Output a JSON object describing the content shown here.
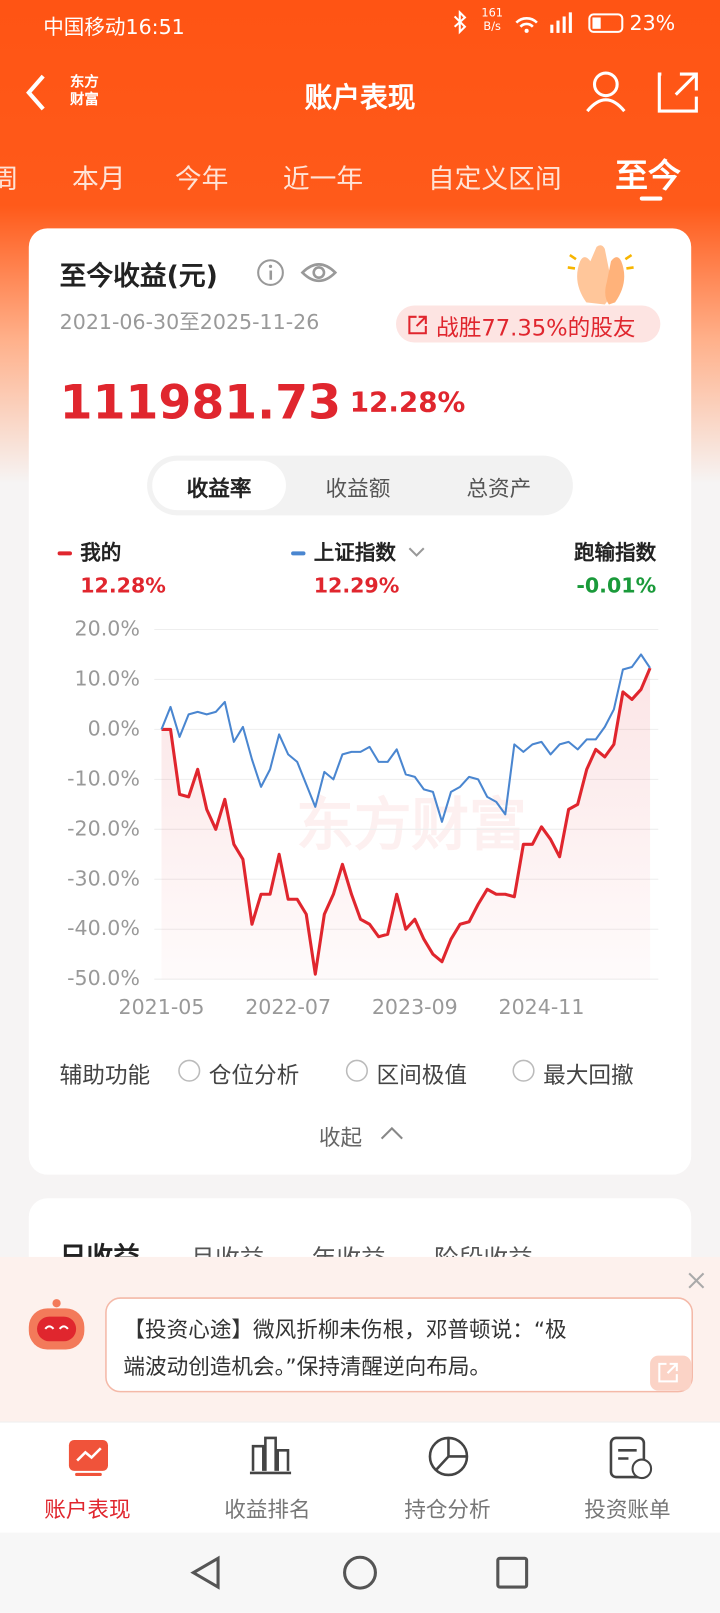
{
  "status_bar": {
    "carrier_time": "中国移动16:51",
    "speed": "161",
    "speed_unit": "B/s",
    "battery": "23%"
  },
  "header": {
    "logo": "东方财富",
    "title": "账户表现"
  },
  "tabs": [
    "周",
    "本月",
    "今年",
    "近一年",
    "自定义区间",
    "至今"
  ],
  "card": {
    "title": "至今收益(元)",
    "date_range": "2021-06-30至2025-11-26",
    "badge": "战胜77.35%的股友",
    "amount": "111981.73",
    "rate": "12.28%",
    "toggle": [
      "收益率",
      "收益额",
      "总资产"
    ],
    "diff": {
      "name": "跑输指数",
      "value": "-0.01%"
    },
    "watermark": "东方财富"
  },
  "chart_data": {
    "type": "line",
    "categories": [
      "2021-05",
      null,
      null,
      null,
      null,
      null,
      null,
      null,
      null,
      null,
      null,
      null,
      null,
      null,
      "2022-07",
      null,
      null,
      null,
      null,
      null,
      null,
      null,
      null,
      null,
      null,
      null,
      null,
      null,
      "2023-09",
      null,
      null,
      null,
      null,
      null,
      null,
      null,
      null,
      null,
      null,
      null,
      null,
      null,
      "2024-11",
      null,
      null,
      null,
      null,
      null,
      null,
      null,
      null,
      null,
      null,
      null,
      null
    ],
    "series": [
      {
        "name": "我的",
        "color": "#e0262e",
        "label": "12.28%",
        "values": [
          0,
          0,
          -13,
          -13.5,
          -8,
          -16,
          -20,
          -14,
          -23,
          -26,
          -39,
          -33,
          -33,
          -25,
          -34,
          -34,
          -37,
          -49,
          -37,
          -33,
          -27,
          -33,
          -38,
          -39,
          -41.5,
          -41,
          -33,
          -40,
          -38,
          -42,
          -45,
          -46.5,
          -42,
          -39,
          -38.5,
          -35,
          -32,
          -33,
          -33,
          -33.5,
          -23,
          -23,
          -19.5,
          -22,
          -25.5,
          -16,
          -15,
          -8,
          -4,
          -5.5,
          -3,
          7.5,
          6,
          8,
          12.28
        ]
      },
      {
        "name": "上证指数",
        "color": "#4a86d0",
        "label": "12.29%",
        "values": [
          0,
          4.5,
          -1.5,
          3,
          3.5,
          3,
          3.5,
          5.5,
          -2.5,
          0.5,
          -6,
          -11.5,
          -8,
          -1,
          -5,
          -6.5,
          -11,
          -15.5,
          -8.5,
          -10,
          -5,
          -4.5,
          -4.5,
          -3.5,
          -6.5,
          -6.5,
          -4,
          -9,
          -9.5,
          -12,
          -12.5,
          -18.5,
          -12.5,
          -11.5,
          -9.5,
          -10,
          -13.5,
          -14.5,
          -17,
          -3,
          -4.5,
          -3,
          -2.5,
          -5,
          -3,
          -2.5,
          -4,
          -2,
          -2,
          0.5,
          4,
          12,
          12.5,
          15,
          12.29
        ]
      }
    ],
    "ylim": [
      -50,
      20
    ],
    "yticks": [
      {
        "value": 20,
        "label": "20.0%"
      },
      {
        "value": 10,
        "label": "10.0%"
      },
      {
        "value": 0,
        "label": "0.0%"
      },
      {
        "value": -10,
        "label": "-10.0%"
      },
      {
        "value": -20,
        "label": "-20.0%"
      },
      {
        "value": -30,
        "label": "-30.0%"
      },
      {
        "value": -40,
        "label": "-40.0%"
      },
      {
        "value": -50,
        "label": "-50.0%"
      }
    ],
    "grid": true
  },
  "aux": {
    "label": "辅助功能",
    "options": [
      "仓位分析",
      "区间极值",
      "最大回撤"
    ],
    "collapse": "收起"
  },
  "second_card": {
    "tabs": [
      "日收益",
      "月收益",
      "年收益",
      "阶段收益"
    ]
  },
  "popup": {
    "line1": "【投资心途】微风折柳未伤根，邓普顿说：“极",
    "line2": "端波动创造机会。”保持清醒逆向布局。"
  },
  "nav": [
    "账户表现",
    "收益排名",
    "持仓分析",
    "投资账单"
  ]
}
